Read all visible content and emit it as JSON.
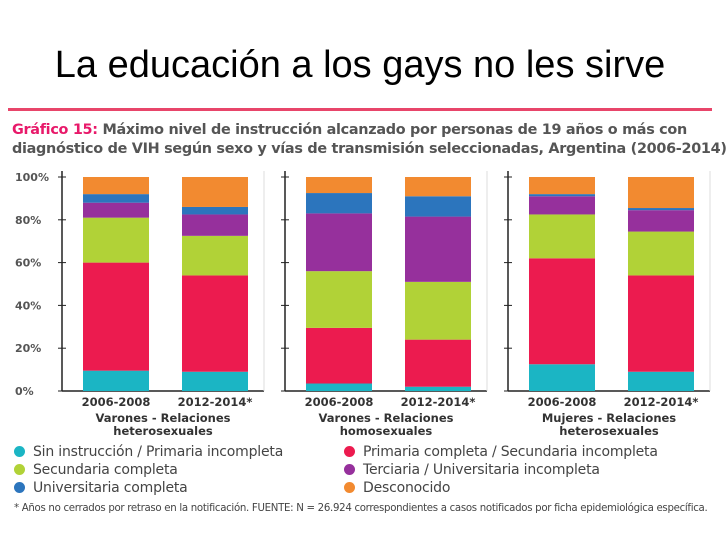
{
  "slide": {
    "title": "La educación a los gays no les sirve"
  },
  "chart_title": {
    "prefix": "Gráfico 15:",
    "line1_rest": " Máximo nivel de instrucción alcanzado por personas de 19 años o más con",
    "line2": "diagnóstico de VIH según sexo y vías de transmisión seleccionadas, Argentina (2006-2014)"
  },
  "footnote": "* Años no cerrados por retraso en la notificación. FUENTE: N = 26.924 correspondientes a casos notificados por ficha epidemiológica específica.",
  "chart_data": {
    "type": "bar",
    "stacked": true,
    "ylim": [
      0,
      100
    ],
    "yticks": [
      "0%",
      "20%",
      "40%",
      "60%",
      "80%",
      "100%"
    ],
    "groups": [
      {
        "label": "Varones - Relaciones heterosexuales",
        "label_lines": [
          "Varones - Relaciones",
          "heterosexuales"
        ],
        "bars": [
          {
            "label": "2006-2008",
            "values": [
              9.5,
              50.5,
              21,
              7,
              4,
              8
            ]
          },
          {
            "label": "2012-2014*",
            "values": [
              9,
              45,
              18.5,
              10,
              3.5,
              14
            ]
          }
        ]
      },
      {
        "label": "Varones - Relaciones homosexuales",
        "label_lines": [
          "Varones - Relaciones",
          "homosexuales"
        ],
        "bars": [
          {
            "label": "2006-2008",
            "values": [
              3.5,
              26,
              26.5,
              27,
              9.5,
              7.5
            ]
          },
          {
            "label": "2012-2014*",
            "values": [
              2,
              22,
              27,
              30.5,
              9.5,
              9
            ]
          }
        ]
      },
      {
        "label": "Mujeres - Relaciones heterosexuales",
        "label_lines": [
          "Mujeres - Relaciones",
          "heterosexuales"
        ],
        "bars": [
          {
            "label": "2006-2008",
            "values": [
              12.5,
              49.5,
              20.5,
              8.5,
              1,
              8
            ]
          },
          {
            "label": "2012-2014*",
            "values": [
              9,
              45,
              20.5,
              10,
              1,
              14.5
            ]
          }
        ]
      }
    ],
    "series": [
      {
        "name": "Sin instrucción / Primaria incompleta",
        "color": "#1bb5c4"
      },
      {
        "name": "Primaria completa / Secundaria incompleta",
        "color": "#ec1b4f"
      },
      {
        "name": "Secundaria completa",
        "color": "#b1d237"
      },
      {
        "name": "Terciaria / Universitaria incompleta",
        "color": "#96309c"
      },
      {
        "name": "Universitaria completa",
        "color": "#2c75bd"
      },
      {
        "name": "Desconocido",
        "color": "#f28a30"
      }
    ],
    "legend_position": "bottom"
  }
}
